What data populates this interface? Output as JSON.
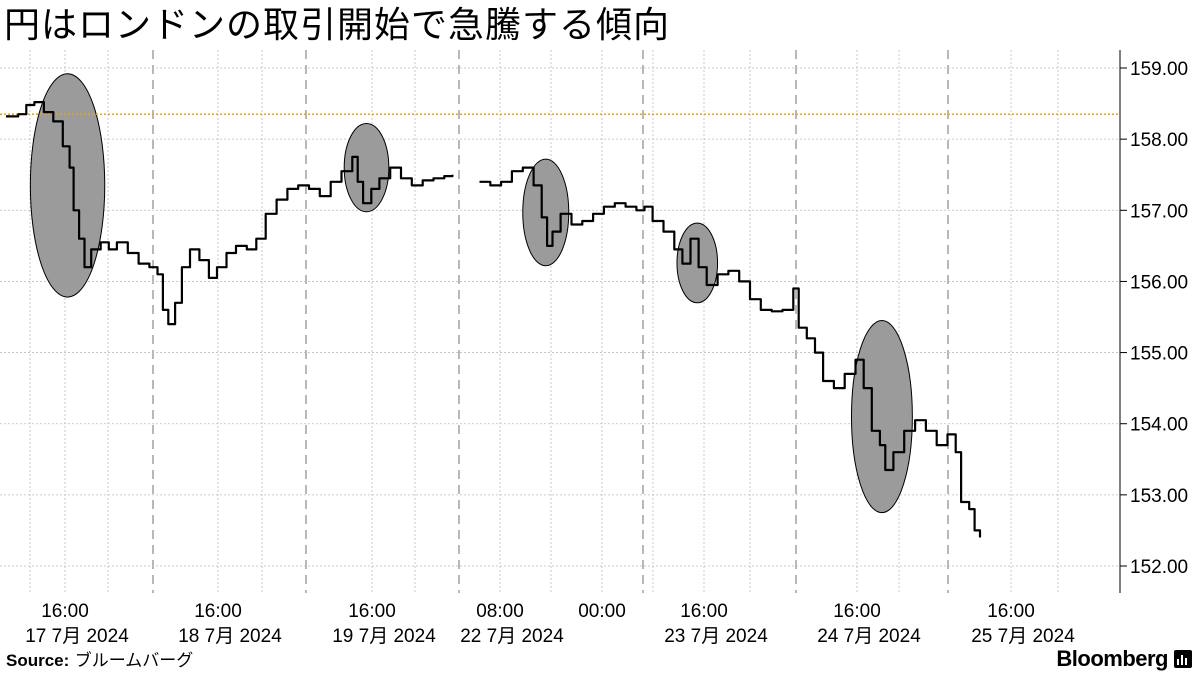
{
  "title": "円はロンドンの取引開始で急騰する傾向",
  "footer": {
    "source_label": "Source:",
    "source_text": "ブルームバーグ",
    "brand": "Bloomberg"
  },
  "colors": {
    "line": "#000000",
    "reference_line": "#e8a317",
    "highlight_fill": "#9b9b9b",
    "grid": "#bdbdbd"
  },
  "chart_data": {
    "type": "line",
    "title": "円はロンドンの取引開始で急騰する傾向",
    "ylim": [
      151.65,
      159.3
    ],
    "y_ticks": [
      159.0,
      158.0,
      157.0,
      156.0,
      155.0,
      154.0,
      153.0,
      152.0
    ],
    "y_tick_labels": [
      "159.00",
      "158.00",
      "157.00",
      "156.00",
      "155.00",
      "154.00",
      "153.00",
      "152.00"
    ],
    "y_axis_side": "right",
    "grid": true,
    "legend": "none",
    "reference_line": 158.35,
    "x_tick_labels": [
      {
        "time": "16:00",
        "date": "17 7月 2024"
      },
      {
        "time": "16:00",
        "date": "18 7月 2024"
      },
      {
        "time": "16:00",
        "date": "19 7月 2024"
      },
      {
        "time": "08:00",
        "date": "22 7月 2024"
      },
      {
        "time": "00:00",
        "date": ""
      },
      {
        "time": "16:00",
        "date": "23 7月 2024"
      },
      {
        "time": "16:00",
        "date": "24 7月 2024"
      },
      {
        "time": "16:00",
        "date": "25 7月 2024"
      }
    ],
    "series": [
      {
        "values": [
          [
            0,
            158.32
          ],
          [
            0.9,
            158.35
          ],
          [
            1.5,
            158.48
          ],
          [
            2.1,
            158.52
          ],
          [
            2.8,
            158.38
          ],
          [
            3.5,
            158.25
          ],
          [
            4.2,
            157.9
          ],
          [
            4.7,
            157.6
          ],
          [
            5.0,
            157.0
          ],
          [
            5.4,
            156.6
          ],
          [
            5.8,
            156.2
          ],
          [
            6.3,
            156.45
          ],
          [
            7.0,
            156.55
          ],
          [
            7.6,
            156.45
          ],
          [
            8.2,
            156.55
          ],
          [
            9.0,
            156.4
          ],
          [
            9.8,
            156.25
          ],
          [
            10.6,
            156.2
          ],
          [
            11.2,
            156.1
          ],
          [
            11.6,
            155.6
          ],
          [
            12.0,
            155.4
          ],
          [
            12.5,
            155.7
          ],
          [
            13.0,
            156.2
          ],
          [
            13.6,
            156.45
          ],
          [
            14.3,
            156.3
          ],
          [
            15.0,
            156.05
          ],
          [
            15.6,
            156.2
          ],
          [
            16.3,
            156.4
          ],
          [
            17.0,
            156.5
          ],
          [
            17.8,
            156.45
          ],
          [
            18.5,
            156.6
          ],
          [
            19.2,
            156.95
          ],
          [
            20.0,
            157.15
          ],
          [
            20.8,
            157.3
          ],
          [
            21.6,
            157.35
          ],
          [
            22.4,
            157.3
          ],
          [
            23.2,
            157.2
          ],
          [
            24.0,
            157.4
          ],
          [
            24.8,
            157.55
          ],
          [
            25.6,
            157.75
          ],
          [
            26.0,
            157.4
          ],
          [
            26.4,
            157.1
          ],
          [
            27.0,
            157.3
          ],
          [
            27.6,
            157.45
          ],
          [
            28.4,
            157.6
          ],
          [
            29.2,
            157.45
          ],
          [
            30.0,
            157.35
          ],
          [
            30.8,
            157.42
          ],
          [
            31.6,
            157.45
          ],
          [
            32.4,
            157.48
          ],
          [
            33.0,
            157.5
          ],
          null,
          [
            35.0,
            157.4
          ],
          [
            35.8,
            157.35
          ],
          [
            36.6,
            157.4
          ],
          [
            37.4,
            157.55
          ],
          [
            38.2,
            157.6
          ],
          [
            39.0,
            157.35
          ],
          [
            39.6,
            156.9
          ],
          [
            40.0,
            156.5
          ],
          [
            40.4,
            156.7
          ],
          [
            41.0,
            156.95
          ],
          [
            41.8,
            156.8
          ],
          [
            42.6,
            156.85
          ],
          [
            43.4,
            156.95
          ],
          [
            44.2,
            157.05
          ],
          [
            45.0,
            157.1
          ],
          [
            45.8,
            157.05
          ],
          [
            46.6,
            157.0
          ],
          [
            47.2,
            157.05
          ],
          [
            47.8,
            156.85
          ],
          [
            48.6,
            156.7
          ],
          [
            49.4,
            156.45
          ],
          [
            50.0,
            156.25
          ],
          [
            50.6,
            156.6
          ],
          [
            51.2,
            156.2
          ],
          [
            51.8,
            155.95
          ],
          [
            52.6,
            156.1
          ],
          [
            53.4,
            156.15
          ],
          [
            54.2,
            156.0
          ],
          [
            55.0,
            155.75
          ],
          [
            55.8,
            155.6
          ],
          [
            56.6,
            155.58
          ],
          [
            57.4,
            155.6
          ],
          [
            58.2,
            155.9
          ],
          [
            58.6,
            155.35
          ],
          [
            59.2,
            155.2
          ],
          [
            59.8,
            155.0
          ],
          [
            60.4,
            154.6
          ],
          [
            61.2,
            154.5
          ],
          [
            62.0,
            154.7
          ],
          [
            62.8,
            154.9
          ],
          [
            63.4,
            154.5
          ],
          [
            64.0,
            153.9
          ],
          [
            64.6,
            153.7
          ],
          [
            65.0,
            153.35
          ],
          [
            65.6,
            153.6
          ],
          [
            66.4,
            153.9
          ],
          [
            67.2,
            154.05
          ],
          [
            68.0,
            153.9
          ],
          [
            68.8,
            153.7
          ],
          [
            69.6,
            153.85
          ],
          [
            70.2,
            153.6
          ],
          [
            70.6,
            152.9
          ],
          [
            71.2,
            152.8
          ],
          [
            71.6,
            152.5
          ],
          [
            72.0,
            152.4
          ]
        ]
      }
    ],
    "highlights": [
      {
        "x_range": [
          1.8,
          7.3
        ],
        "y_range": [
          155.78,
          158.92
        ]
      },
      {
        "x_range": [
          25.0,
          28.3
        ],
        "y_range": [
          156.98,
          158.22
        ]
      },
      {
        "x_range": [
          38.2,
          41.6
        ],
        "y_range": [
          156.22,
          157.72
        ]
      },
      {
        "x_range": [
          49.6,
          52.6
        ],
        "y_range": [
          155.7,
          156.82
        ]
      },
      {
        "x_range": [
          62.5,
          67.0
        ],
        "y_range": [
          152.75,
          155.45
        ]
      }
    ]
  }
}
